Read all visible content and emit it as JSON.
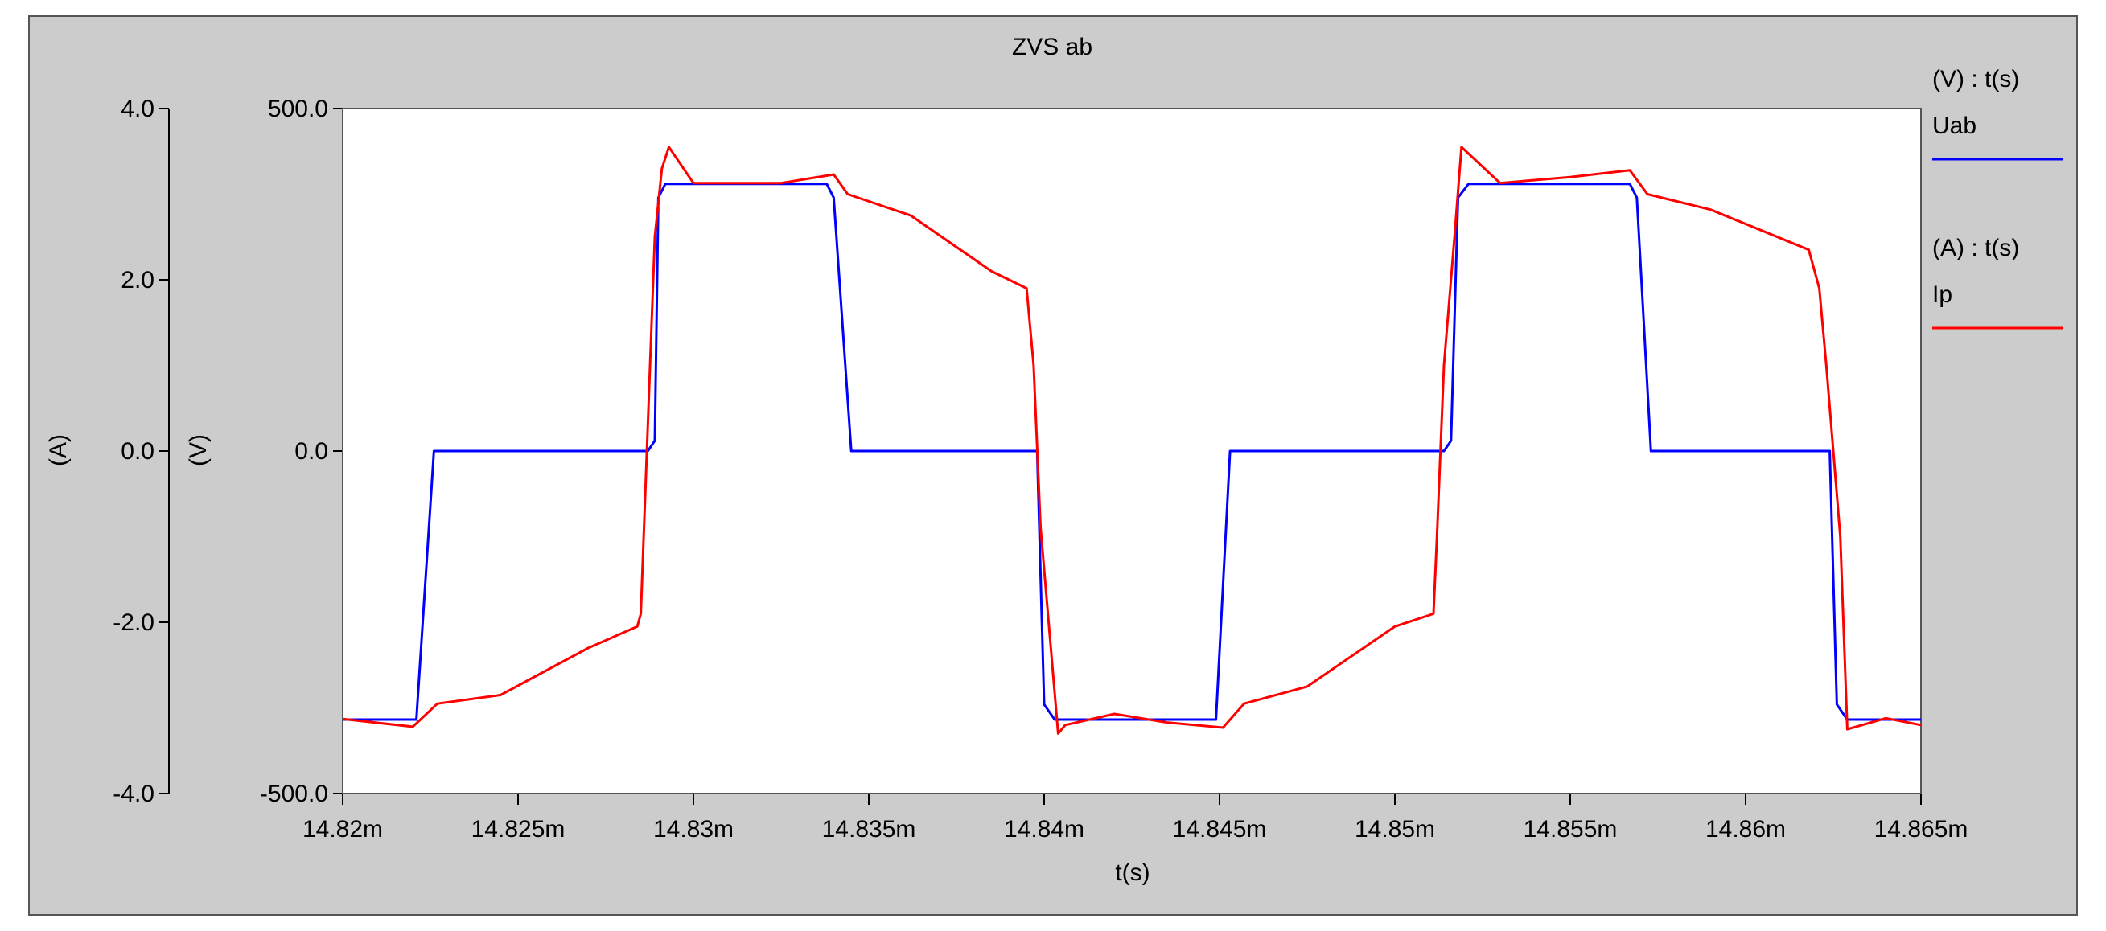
{
  "chart_data": {
    "type": "line",
    "title": "ZVS ab",
    "xlabel": "t(s)",
    "xlim": [
      14.82,
      14.865
    ],
    "x_unit_suffix": "m",
    "x_ticks": [
      14.82,
      14.825,
      14.83,
      14.835,
      14.84,
      14.845,
      14.85,
      14.855,
      14.86,
      14.865
    ],
    "x_tick_labels": [
      "14.82m",
      "14.825m",
      "14.83m",
      "14.835m",
      "14.84m",
      "14.845m",
      "14.85m",
      "14.855m",
      "14.86m",
      "14.865m"
    ],
    "axes": {
      "current": {
        "label": "(A)",
        "ylim": [
          -4.0,
          4.0
        ],
        "ticks": [
          4.0,
          2.0,
          0.0,
          -2.0,
          -4.0
        ],
        "tick_labels": [
          "4.0",
          "2.0",
          "0.0",
          "-2.0",
          "-4.0"
        ]
      },
      "voltage": {
        "label": "(V)",
        "ylim": [
          -500.0,
          500.0
        ],
        "ticks": [
          500.0,
          0.0,
          -500.0
        ],
        "tick_labels": [
          "500.0",
          "0.0",
          "-500.0"
        ]
      }
    },
    "grid": false,
    "legend_placement": "right",
    "series": [
      {
        "name": "Uab",
        "legend_header": "(V) : t(s)",
        "axis": "voltage",
        "color": "#0000ff",
        "x": [
          14.82,
          14.8221,
          14.8226,
          14.8287,
          14.8289,
          14.829,
          14.8292,
          14.8338,
          14.834,
          14.8345,
          14.8398,
          14.84,
          14.8403,
          14.8449,
          14.8453,
          14.8514,
          14.8516,
          14.8518,
          14.8521,
          14.8567,
          14.8569,
          14.8573,
          14.8624,
          14.8626,
          14.8629,
          14.865
        ],
        "y": [
          -392,
          -392,
          0,
          0,
          15,
          370,
          390,
          390,
          370,
          0,
          0,
          -370,
          -392,
          -392,
          0,
          0,
          15,
          370,
          390,
          390,
          370,
          0,
          0,
          -370,
          -392,
          -392
        ]
      },
      {
        "name": "Ip",
        "legend_header": "(A) : t(s)",
        "axis": "current",
        "color": "#ff0000",
        "x": [
          14.82,
          14.822,
          14.8227,
          14.8245,
          14.827,
          14.8284,
          14.8285,
          14.8289,
          14.8291,
          14.8293,
          14.83,
          14.8325,
          14.834,
          14.8344,
          14.8362,
          14.8385,
          14.8395,
          14.8397,
          14.8399,
          14.8404,
          14.8406,
          14.842,
          14.8435,
          14.8451,
          14.8457,
          14.8475,
          14.85,
          14.8511,
          14.8512,
          14.8514,
          14.8517,
          14.8519,
          14.853,
          14.855,
          14.8567,
          14.8572,
          14.859,
          14.8618,
          14.8621,
          14.8623,
          14.8627,
          14.8629,
          14.864,
          14.865
        ],
        "y": [
          -3.13,
          -3.22,
          -2.95,
          -2.85,
          -2.3,
          -2.05,
          -1.9,
          2.5,
          3.3,
          3.55,
          3.13,
          3.13,
          3.23,
          3.0,
          2.75,
          2.1,
          1.9,
          1.0,
          -0.9,
          -3.3,
          -3.2,
          -3.07,
          -3.17,
          -3.23,
          -2.95,
          -2.75,
          -2.05,
          -1.9,
          -1.0,
          1.0,
          2.5,
          3.55,
          3.13,
          3.2,
          3.28,
          3.0,
          2.82,
          2.35,
          1.9,
          1.0,
          -1.0,
          -3.25,
          -3.12,
          -3.2
        ]
      }
    ]
  }
}
